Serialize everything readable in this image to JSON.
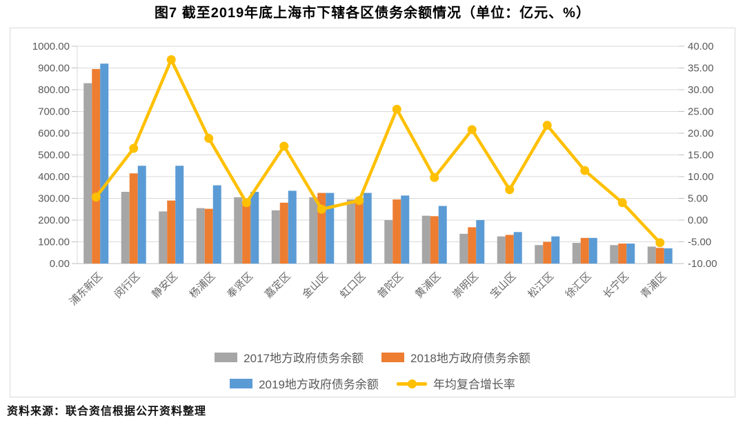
{
  "title": "图7  截至2019年底上海市下辖各区债务余额情况（单位：亿元、%）",
  "source": "资料来源：联合资信根据公开资料整理",
  "colors": {
    "bar_2017": "#A6A6A6",
    "bar_2018": "#ED7D31",
    "bar_2019": "#5B9BD5",
    "line_cagr": "#FFC000",
    "grid": "#D9D9D9",
    "axis_text": "#595959"
  },
  "chart_data": {
    "type": "bar",
    "subtype": "grouped bars with secondary-axis line (combo)",
    "title": "图7  截至2019年底上海市下辖各区债务余额情况（单位：亿元、%）",
    "categories": [
      "浦东新区",
      "闵行区",
      "静安区",
      "杨浦区",
      "奉贤区",
      "嘉定区",
      "金山区",
      "虹口区",
      "普陀区",
      "黄浦区",
      "崇明区",
      "宝山区",
      "松江区",
      "徐汇区",
      "长宁区",
      "青浦区"
    ],
    "series": [
      {
        "name": "2017地方政府债务余额",
        "type": "bar",
        "axis": "left",
        "color": "#A6A6A6",
        "values": [
          830,
          330,
          240,
          255,
          305,
          245,
          305,
          295,
          200,
          220,
          137,
          125,
          85,
          95,
          85,
          78
        ]
      },
      {
        "name": "2018地方政府债务余额",
        "type": "bar",
        "axis": "left",
        "color": "#ED7D31",
        "values": [
          895,
          415,
          290,
          252,
          285,
          280,
          325,
          280,
          295,
          218,
          167,
          132,
          100,
          118,
          92,
          72
        ]
      },
      {
        "name": "2019地方政府债务余额",
        "type": "bar",
        "axis": "left",
        "color": "#5B9BD5",
        "values": [
          920,
          450,
          450,
          360,
          330,
          335,
          325,
          325,
          313,
          265,
          200,
          145,
          125,
          118,
          92,
          70
        ]
      },
      {
        "name": "年均复合增长率",
        "type": "line",
        "axis": "right",
        "color": "#FFC000",
        "values": [
          5.3,
          16.5,
          36.9,
          18.8,
          4.0,
          17.0,
          2.5,
          4.5,
          25.5,
          9.8,
          20.8,
          7.0,
          21.8,
          11.4,
          4.0,
          -5.2
        ]
      }
    ],
    "left_axis": {
      "min": 0,
      "max": 1000,
      "step": 100,
      "unit": "亿元",
      "tick_labels": [
        "1000.00",
        "900.00",
        "800.00",
        "700.00",
        "600.00",
        "500.00",
        "400.00",
        "300.00",
        "200.00",
        "100.00",
        "0.00"
      ]
    },
    "right_axis": {
      "min": -10,
      "max": 40,
      "step": 5,
      "unit": "%",
      "tick_labels": [
        "40.00",
        "35.00",
        "30.00",
        "25.00",
        "20.00",
        "15.00",
        "10.00",
        "5.00",
        "0.00",
        "-5.00",
        "-10.00"
      ]
    },
    "grid": true,
    "legend_position": "bottom"
  }
}
